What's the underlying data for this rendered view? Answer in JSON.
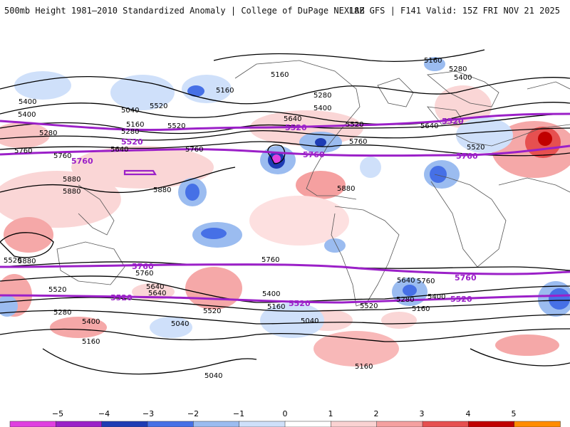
{
  "header": {
    "title": "500mb Height 1981–2010 Standardized Anomaly | College of DuPage NEXLAB",
    "run_info": "18Z GFS | F141 Valid: 15Z FRI NOV 21 2025"
  },
  "colors": {
    "contour": "#000000",
    "highlight_contour": "#9b20c8",
    "land": "#555555"
  },
  "contour_labels": [
    "5160",
    "5160",
    "5280",
    "5400",
    "5160",
    "5280",
    "5400",
    "5040",
    "5160",
    "5280",
    "5400",
    "5520",
    "5640",
    "5520",
    "5640",
    "5520",
    "5640",
    "5760",
    "5760",
    "5760",
    "5880",
    "5880",
    "5880",
    "5880",
    "5880",
    "5640",
    "5520",
    "5760",
    "5760",
    "5520",
    "5400",
    "5280",
    "5160",
    "5040",
    "5040",
    "5640",
    "5520",
    "5400",
    "5160",
    "5400",
    "5520",
    "5640",
    "5760",
    "5760",
    "5520",
    "5400",
    "5280",
    "5160",
    "5160",
    "5040",
    "5280"
  ],
  "highlight_labels": [
    "5520",
    "5520",
    "5520",
    "5760",
    "5760",
    "5760",
    "5760",
    "5520",
    "5520",
    "5760",
    "5520"
  ],
  "colorbar": {
    "labels": [
      "−5",
      "−4",
      "−3",
      "−2",
      "−1",
      "0",
      "1",
      "2",
      "3",
      "4",
      "5"
    ],
    "colors": [
      "#e040e0",
      "#9b20c8",
      "#1e3cb4",
      "#4670e6",
      "#9bbcf0",
      "#cfe0fa",
      "#ffffff",
      "#fad2d2",
      "#f5a0a0",
      "#e65050",
      "#c00000",
      "#ff8c00"
    ]
  }
}
